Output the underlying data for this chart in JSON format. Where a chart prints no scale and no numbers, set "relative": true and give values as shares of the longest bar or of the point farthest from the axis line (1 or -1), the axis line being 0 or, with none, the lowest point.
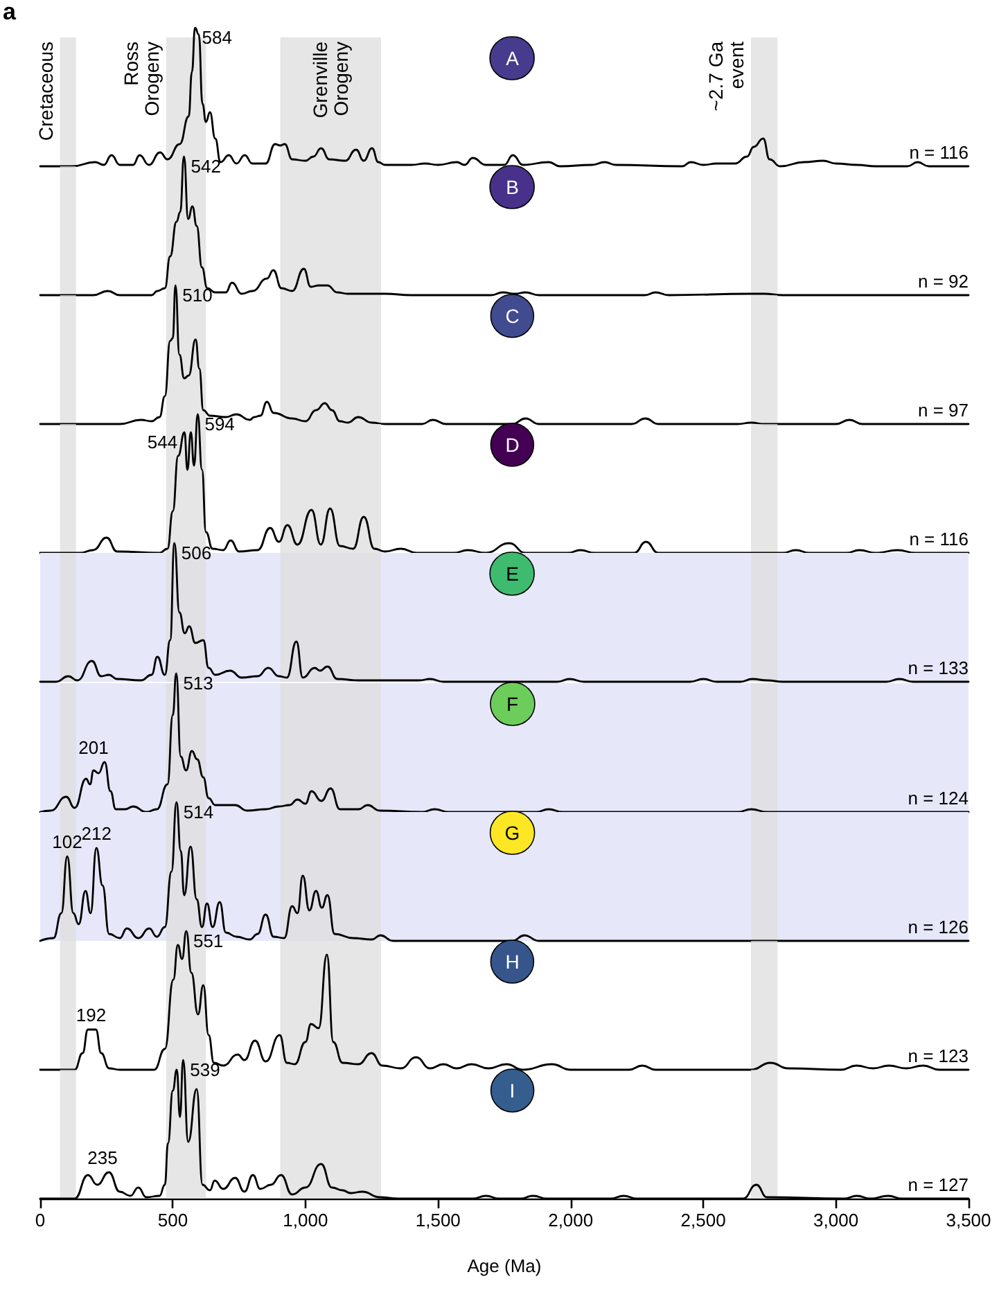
{
  "chart_data": [
    {
      "type": "line",
      "title": "A",
      "subtitle": "a",
      "relative": true,
      "tick_labels": false,
      "marker": "none",
      "xlim": [
        0,
        3500
      ],
      "bands": [
        {
          "axis": "x",
          "from": 75,
          "to": 135,
          "color": "#dddddd",
          "label": "Cretaceous"
        },
        {
          "axis": "x",
          "from": 475,
          "to": 625,
          "color": "#dddddd",
          "label": "Ross Orogeny"
        },
        {
          "axis": "x",
          "from": 905,
          "to": 1285,
          "color": "#dddddd",
          "label": "Grenville Orogeny"
        },
        {
          "axis": "x",
          "from": 2680,
          "to": 2780,
          "color": "#dddddd",
          "label": "~2.7 Ga event"
        }
      ],
      "annotations": [
        {
          "text": "584",
          "x": 584,
          "y": 1
        },
        "n = 116"
      ],
      "series": [
        {
          "color": "#000000",
          "x": [
            0,
            120,
            207,
            240,
            269,
            300,
            350,
            375,
            410,
            452,
            480,
            526,
            560,
            572,
            584,
            598,
            612,
            625,
            640,
            660,
            680,
            711,
            740,
            771,
            800,
            850,
            886,
            905,
            922,
            950,
            1000,
            1030,
            1059,
            1090,
            1150,
            1191,
            1220,
            1251,
            1275,
            1300,
            1400,
            1451,
            1500,
            1571,
            1600,
            1631,
            1680,
            1750,
            1782,
            1820,
            1917,
            1960,
            2080,
            2128,
            2170,
            2420,
            2453,
            2500,
            2551,
            2620,
            2665,
            2690,
            2726,
            2750,
            2790,
            2880,
            2952,
            3000,
            3080,
            3150,
            3270,
            3308,
            3350,
            3500
          ],
          "values": [
            0,
            0,
            0.03,
            0.01,
            0.08,
            0.01,
            0.01,
            0.08,
            0.01,
            0.1,
            0.05,
            0.16,
            0.36,
            0.68,
            1,
            0.95,
            0.45,
            0.32,
            0.39,
            0.2,
            0.03,
            0.08,
            0.02,
            0.08,
            0.02,
            0.02,
            0.16,
            0.15,
            0.16,
            0.05,
            0.04,
            0.07,
            0.13,
            0.05,
            0.04,
            0.12,
            0.04,
            0.13,
            0.03,
            0.01,
            0.01,
            0.02,
            0.01,
            0.03,
            0.01,
            0.06,
            0.01,
            0.01,
            0.08,
            0.01,
            0.03,
            0,
            0.01,
            0.03,
            0.01,
            0,
            0.03,
            0.01,
            0.02,
            0.02,
            0.07,
            0.14,
            0.2,
            0.05,
            0,
            0.03,
            0.04,
            0.02,
            0.01,
            0,
            0,
            0.03,
            0,
            0
          ]
        }
      ]
    },
    {
      "type": "line",
      "title": "B",
      "relative": true,
      "tick_labels": false,
      "marker": "none",
      "xlim": [
        0,
        3500
      ],
      "bands": [
        {
          "axis": "x",
          "from": 75,
          "to": 135,
          "color": "#dddddd"
        },
        {
          "axis": "x",
          "from": 475,
          "to": 625,
          "color": "#dddddd"
        },
        {
          "axis": "x",
          "from": 905,
          "to": 1285,
          "color": "#dddddd"
        },
        {
          "axis": "x",
          "from": 2680,
          "to": 2780,
          "color": "#dddddd"
        }
      ],
      "annotations": [
        {
          "text": "542",
          "x": 542,
          "y": 1
        },
        "n = 92"
      ],
      "series": [
        {
          "color": "#000000",
          "x": [
            0,
            200,
            255,
            300,
            420,
            442,
            470,
            490,
            514,
            528,
            542,
            558,
            574,
            590,
            610,
            630,
            660,
            700,
            723,
            760,
            800,
            855,
            879,
            910,
            950,
            994,
            1020,
            1050,
            1083,
            1120,
            1160,
            1300,
            1400,
            1700,
            1744,
            1790,
            1830,
            1880,
            2280,
            2320,
            2370,
            2680,
            2729,
            2800,
            3500
          ],
          "values": [
            0,
            0,
            0.03,
            0,
            0,
            0.03,
            0.05,
            0.28,
            0.53,
            0.6,
            1,
            0.55,
            0.64,
            0.5,
            0.2,
            0.05,
            0.02,
            0.02,
            0.09,
            0.01,
            0.03,
            0.12,
            0.18,
            0.05,
            0.03,
            0.19,
            0.06,
            0.07,
            0.07,
            0.02,
            0.01,
            0.01,
            0,
            0,
            0.02,
            0.01,
            0.02,
            0,
            0,
            0.02,
            0,
            0.01,
            0.01,
            0,
            0
          ]
        }
      ]
    },
    {
      "type": "line",
      "title": "C",
      "relative": true,
      "tick_labels": false,
      "marker": "none",
      "xlim": [
        0,
        3500
      ],
      "bands": [
        {
          "axis": "x",
          "from": 75,
          "to": 135,
          "color": "#dddddd"
        },
        {
          "axis": "x",
          "from": 475,
          "to": 625,
          "color": "#dddddd"
        },
        {
          "axis": "x",
          "from": 905,
          "to": 1285,
          "color": "#dddddd"
        },
        {
          "axis": "x",
          "from": 2680,
          "to": 2780,
          "color": "#dddddd"
        }
      ],
      "annotations": [
        {
          "text": "510",
          "x": 510,
          "y": 1
        },
        "n = 97"
      ],
      "series": [
        {
          "color": "#000000",
          "x": [
            0,
            300,
            380,
            420,
            450,
            470,
            490,
            500,
            510,
            525,
            543,
            560,
            586,
            600,
            615,
            640,
            700,
            740,
            790,
            807,
            830,
            855,
            880,
            950,
            1000,
            1040,
            1073,
            1100,
            1130,
            1160,
            1199,
            1250,
            1300,
            1440,
            1480,
            1530,
            1780,
            1830,
            1880,
            2230,
            2282,
            2330,
            2630,
            2681,
            2730,
            3000,
            3051,
            3100,
            3500
          ],
          "values": [
            0,
            0,
            0.03,
            0.02,
            0.05,
            0.2,
            0.6,
            0.62,
            1,
            0.5,
            0.33,
            0.35,
            0.61,
            0.4,
            0.1,
            0.06,
            0.05,
            0.07,
            0.03,
            0.05,
            0.06,
            0.16,
            0.08,
            0.04,
            0.02,
            0.1,
            0.15,
            0.1,
            0.02,
            0.01,
            0.05,
            0.01,
            0,
            0,
            0.03,
            0,
            0,
            0.04,
            0,
            0,
            0.04,
            0,
            0,
            0.01,
            0,
            0,
            0.03,
            0,
            0
          ]
        }
      ]
    },
    {
      "type": "line",
      "title": "D",
      "relative": true,
      "tick_labels": false,
      "marker": "none",
      "xlim": [
        0,
        3500
      ],
      "bands": [
        {
          "axis": "x",
          "from": 75,
          "to": 135,
          "color": "#dddddd"
        },
        {
          "axis": "x",
          "from": 475,
          "to": 625,
          "color": "#dddddd"
        },
        {
          "axis": "x",
          "from": 905,
          "to": 1285,
          "color": "#dddddd"
        },
        {
          "axis": "x",
          "from": 2680,
          "to": 2780,
          "color": "#dddddd"
        }
      ],
      "annotations": [
        {
          "text": "544",
          "x": 544,
          "y": 0.87
        },
        {
          "text": "594",
          "x": 594,
          "y": 1
        },
        "n = 116"
      ],
      "series": [
        {
          "color": "#000000",
          "x": [
            0,
            150,
            200,
            250,
            290,
            450,
            480,
            500,
            520,
            544,
            555,
            568,
            580,
            594,
            610,
            625,
            650,
            690,
            718,
            750,
            820,
            867,
            900,
            932,
            970,
            1023,
            1058,
            1093,
            1130,
            1180,
            1220,
            1260,
            1300,
            1360,
            1420,
            1560,
            1612,
            1680,
            1768,
            1830,
            1990,
            2037,
            2090,
            2240,
            2284,
            2330,
            2800,
            2849,
            2900,
            3040,
            3089,
            3150,
            3233,
            3300,
            3500
          ],
          "values": [
            0,
            0,
            0.02,
            0.11,
            0.01,
            0,
            0.03,
            0.3,
            0.7,
            0.87,
            0.6,
            0.87,
            0.63,
            1,
            0.6,
            0.15,
            0.03,
            0.02,
            0.09,
            0.01,
            0.02,
            0.18,
            0.08,
            0.2,
            0.06,
            0.31,
            0.06,
            0.32,
            0.05,
            0.03,
            0.26,
            0.03,
            0.01,
            0.03,
            0,
            0,
            0.02,
            0,
            0.07,
            0,
            0,
            0.02,
            0,
            0,
            0.08,
            0,
            0,
            0.02,
            0,
            0,
            0.02,
            0,
            0.02,
            0,
            0
          ]
        }
      ]
    },
    {
      "type": "line",
      "title": "E",
      "relative": true,
      "tick_labels": false,
      "marker": "none",
      "xlim": [
        0,
        3500
      ],
      "bands": [
        {
          "axis": "y",
          "from": 0,
          "to": 0.93,
          "color": "#e6e8fa"
        },
        {
          "axis": "x",
          "from": 75,
          "to": 135,
          "color": "#dddddd"
        },
        {
          "axis": "x",
          "from": 475,
          "to": 625,
          "color": "#dddddd"
        },
        {
          "axis": "x",
          "from": 905,
          "to": 1285,
          "color": "#dddddd"
        },
        {
          "axis": "x",
          "from": 2680,
          "to": 2780,
          "color": "#dddddd"
        }
      ],
      "annotations": [
        {
          "text": "506",
          "x": 506,
          "y": 1
        },
        "n = 133"
      ],
      "series": [
        {
          "color": "#000000",
          "x": [
            0,
            60,
            106,
            140,
            195,
            230,
            259,
            290,
            380,
            420,
            442,
            470,
            490,
            506,
            525,
            545,
            562,
            585,
            615,
            635,
            660,
            716,
            760,
            820,
            860,
            900,
            930,
            966,
            990,
            1035,
            1055,
            1083,
            1120,
            1200,
            1430,
            1470,
            1520,
            1950,
            1996,
            2050,
            2450,
            2500,
            2550,
            2640,
            2685,
            2740,
            2800,
            3190,
            3240,
            3290,
            3500
          ],
          "values": [
            0,
            0,
            0.04,
            0.01,
            0.15,
            0.04,
            0.05,
            0.02,
            0.01,
            0.05,
            0.18,
            0.05,
            0.3,
            1,
            0.5,
            0.35,
            0.4,
            0.28,
            0.3,
            0.1,
            0.05,
            0.08,
            0.03,
            0.04,
            0.1,
            0.04,
            0.03,
            0.29,
            0.03,
            0.1,
            0.08,
            0.11,
            0.02,
            0.01,
            0.01,
            0.02,
            0,
            0,
            0.02,
            0,
            0,
            0.02,
            0,
            0,
            0.02,
            0.01,
            0,
            0,
            0.02,
            0,
            0
          ]
        }
      ]
    },
    {
      "type": "line",
      "title": "F",
      "relative": true,
      "tick_labels": false,
      "marker": "none",
      "xlim": [
        0,
        3500
      ],
      "bands": [
        {
          "axis": "y",
          "from": 0,
          "to": 0.93,
          "color": "#e6e8fa"
        },
        {
          "axis": "x",
          "from": 75,
          "to": 135,
          "color": "#dddddd"
        },
        {
          "axis": "x",
          "from": 475,
          "to": 625,
          "color": "#dddddd"
        },
        {
          "axis": "x",
          "from": 905,
          "to": 1285,
          "color": "#dddddd"
        },
        {
          "axis": "x",
          "from": 2680,
          "to": 2780,
          "color": "#dddddd"
        }
      ],
      "annotations": [
        {
          "text": "201",
          "x": 201,
          "y": 0.3
        },
        {
          "text": "513",
          "x": 513,
          "y": 1
        },
        "n = 124"
      ],
      "series": [
        {
          "color": "#000000",
          "x": [
            0,
            40,
            98,
            130,
            173,
            188,
            201,
            220,
            243,
            265,
            285,
            320,
            351,
            400,
            440,
            480,
            500,
            513,
            530,
            550,
            572,
            592,
            615,
            635,
            660,
            735,
            780,
            850,
            900,
            940,
            970,
            1000,
            1023,
            1060,
            1095,
            1130,
            1200,
            1235,
            1280,
            1440,
            1487,
            1540,
            1870,
            1917,
            1970,
            2630,
            2681,
            2740,
            3500
          ],
          "values": [
            0,
            0.01,
            0.11,
            0.03,
            0.24,
            0.2,
            0.3,
            0.28,
            0.36,
            0.15,
            0.02,
            0.02,
            0.04,
            0,
            0.02,
            0.2,
            0.7,
            1,
            0.4,
            0.3,
            0.44,
            0.38,
            0.25,
            0.1,
            0.05,
            0.05,
            0.01,
            0.02,
            0.04,
            0.05,
            0.09,
            0.06,
            0.15,
            0.08,
            0.17,
            0.02,
            0.02,
            0.05,
            0.01,
            0,
            0.02,
            0,
            0,
            0.02,
            0,
            0,
            0.02,
            0,
            0
          ]
        }
      ]
    },
    {
      "type": "line",
      "title": "G",
      "relative": true,
      "tick_labels": false,
      "marker": "none",
      "xlim": [
        0,
        3500
      ],
      "bands": [
        {
          "axis": "y",
          "from": 0,
          "to": 0.93,
          "color": "#e6e8fa"
        },
        {
          "axis": "x",
          "from": 75,
          "to": 135,
          "color": "#dddddd"
        },
        {
          "axis": "x",
          "from": 475,
          "to": 625,
          "color": "#dddddd"
        },
        {
          "axis": "x",
          "from": 905,
          "to": 1285,
          "color": "#dddddd"
        },
        {
          "axis": "x",
          "from": 2680,
          "to": 2780,
          "color": "#dddddd"
        }
      ],
      "annotations": [
        {
          "text": "102",
          "x": 102,
          "y": 0.61
        },
        {
          "text": "212",
          "x": 212,
          "y": 0.67
        },
        {
          "text": "514",
          "x": 514,
          "y": 1
        },
        "n = 126"
      ],
      "series": [
        {
          "color": "#000000",
          "x": [
            0,
            50,
            80,
            102,
            125,
            145,
            171,
            190,
            212,
            235,
            260,
            300,
            327,
            370,
            411,
            440,
            470,
            495,
            514,
            530,
            543,
            567,
            590,
            610,
            629,
            650,
            677,
            700,
            740,
            790,
            820,
            850,
            880,
            920,
            950,
            970,
            990,
            1015,
            1040,
            1062,
            1083,
            1110,
            1180,
            1250,
            1283,
            1330,
            1780,
            1826,
            1880,
            3500
          ],
          "values": [
            0,
            0.02,
            0.2,
            0.61,
            0.2,
            0.12,
            0.36,
            0.2,
            0.67,
            0.4,
            0.05,
            0.02,
            0.09,
            0.02,
            0.09,
            0.03,
            0.1,
            0.5,
            1,
            0.65,
            0.33,
            0.68,
            0.3,
            0.1,
            0.27,
            0.1,
            0.28,
            0.06,
            0.03,
            0.01,
            0.05,
            0.19,
            0.03,
            0.02,
            0.25,
            0.2,
            0.47,
            0.22,
            0.36,
            0.24,
            0.33,
            0.05,
            0.02,
            0.01,
            0.04,
            0,
            0,
            0.04,
            0,
            0
          ]
        }
      ]
    },
    {
      "type": "line",
      "title": "H",
      "relative": true,
      "tick_labels": false,
      "marker": "none",
      "xlim": [
        0,
        3500
      ],
      "bands": [
        {
          "axis": "x",
          "from": 75,
          "to": 135,
          "color": "#dddddd"
        },
        {
          "axis": "x",
          "from": 475,
          "to": 625,
          "color": "#dddddd"
        },
        {
          "axis": "x",
          "from": 905,
          "to": 1285,
          "color": "#dddddd"
        },
        {
          "axis": "x",
          "from": 2680,
          "to": 2780,
          "color": "#dddddd"
        }
      ],
      "annotations": [
        {
          "text": "192",
          "x": 192,
          "y": 0.29
        },
        {
          "text": "551",
          "x": 551,
          "y": 1
        },
        "n = 123"
      ],
      "series": [
        {
          "color": "#000000",
          "x": [
            0,
            130,
            160,
            180,
            192,
            210,
            230,
            260,
            300,
            430,
            470,
            502,
            519,
            535,
            551,
            570,
            595,
            615,
            635,
            655,
            690,
            745,
            770,
            810,
            850,
            903,
            930,
            960,
            1000,
            1021,
            1050,
            1081,
            1105,
            1140,
            1200,
            1249,
            1290,
            1360,
            1417,
            1470,
            1520,
            1570,
            1626,
            1690,
            1758,
            1820,
            1929,
            2000,
            2220,
            2270,
            2320,
            2680,
            2753,
            2820,
            3020,
            3077,
            3140,
            3200,
            3265,
            3329,
            3390,
            3500
          ],
          "values": [
            0,
            0,
            0.12,
            0.29,
            0.29,
            0.29,
            0.12,
            0.01,
            0,
            0,
            0.15,
            0.65,
            0.9,
            0.8,
            1,
            0.7,
            0.4,
            0.61,
            0.25,
            0.05,
            0.03,
            0.11,
            0.07,
            0.21,
            0.06,
            0.25,
            0.05,
            0.04,
            0.2,
            0.33,
            0.3,
            0.83,
            0.2,
            0.05,
            0.04,
            0.12,
            0.03,
            0.01,
            0.09,
            0.01,
            0.04,
            0.01,
            0.04,
            0.01,
            0.04,
            0,
            0.04,
            0,
            0,
            0.03,
            0,
            0,
            0.05,
            0.01,
            0,
            0.03,
            0.01,
            0.03,
            0.01,
            0.03,
            0,
            0
          ]
        }
      ]
    },
    {
      "type": "line",
      "title": "I",
      "relative": true,
      "tick_labels": "x",
      "marker": "none",
      "xlim": [
        0,
        3500
      ],
      "xlabel": "Age (Ma)",
      "xticks": [
        0,
        500,
        {
          "value": 1000,
          "label": "1,000"
        },
        {
          "value": 1500,
          "label": "1,500"
        },
        {
          "value": 2000,
          "label": "2,000"
        },
        {
          "value": 2500,
          "label": "2,500"
        },
        {
          "value": 3000,
          "label": "3,000"
        },
        {
          "value": 3500,
          "label": "3,500"
        }
      ],
      "bands": [
        {
          "axis": "x",
          "from": 75,
          "to": 135,
          "color": "#dddddd"
        },
        {
          "axis": "x",
          "from": 475,
          "to": 625,
          "color": "#dddddd"
        },
        {
          "axis": "x",
          "from": 905,
          "to": 1285,
          "color": "#dddddd"
        },
        {
          "axis": "x",
          "from": 2680,
          "to": 2780,
          "color": "#dddddd"
        }
      ],
      "annotations": [
        {
          "text": "235",
          "x": 235,
          "y": 0.15
        },
        {
          "text": "539",
          "x": 539,
          "y": 1
        },
        "n = 127"
      ],
      "series": [
        {
          "color": "#000000",
          "x": [
            0,
            130,
            180,
            215,
            259,
            300,
            340,
            370,
            400,
            450,
            470,
            482,
            500,
            515,
            527,
            539,
            558,
            590,
            612,
            640,
            658,
            690,
            735,
            770,
            802,
            830,
            870,
            908,
            950,
            1000,
            1059,
            1100,
            1140,
            1170,
            1215,
            1280,
            1350,
            1630,
            1681,
            1730,
            1810,
            1859,
            1910,
            2150,
            2200,
            2250,
            2650,
            2700,
            2740,
            3030,
            3079,
            3130,
            3197,
            3250,
            3500
          ],
          "values": [
            0,
            0,
            0.17,
            0.1,
            0.19,
            0.05,
            0.02,
            0.08,
            0.01,
            0.02,
            0.1,
            0.4,
            0.78,
            0.93,
            0.59,
            1,
            0.41,
            0.79,
            0.1,
            0.06,
            0.13,
            0.07,
            0.15,
            0.05,
            0.17,
            0.07,
            0.1,
            0.17,
            0.03,
            0.08,
            0.25,
            0.08,
            0.06,
            0.04,
            0.05,
            0.01,
            0,
            0,
            0.02,
            0,
            0,
            0.02,
            0,
            0,
            0.02,
            0,
            0,
            0.1,
            0.01,
            0,
            0.02,
            0,
            0.02,
            0,
            0
          ]
        }
      ]
    }
  ]
}
